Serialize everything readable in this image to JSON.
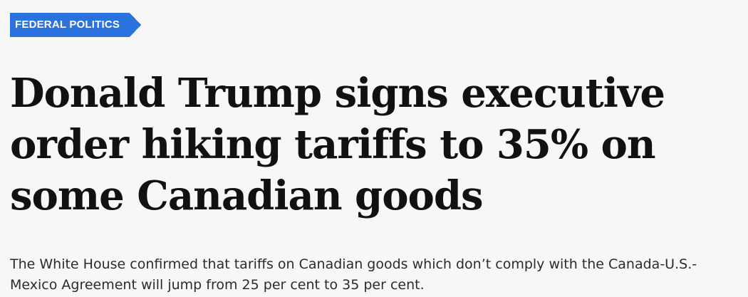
{
  "section": {
    "label": "FEDERAL POLITICS",
    "color": "#2a72de"
  },
  "article": {
    "headline": "Donald Trump signs executive order hiking tariffs to 35% on some Canadian goods",
    "dek": "The White House confirmed that tariffs on Canadian goods which don’t comply with the Canada-U.S.-Mexico Agreement will jump from 25 per cent to 35 per cent."
  }
}
